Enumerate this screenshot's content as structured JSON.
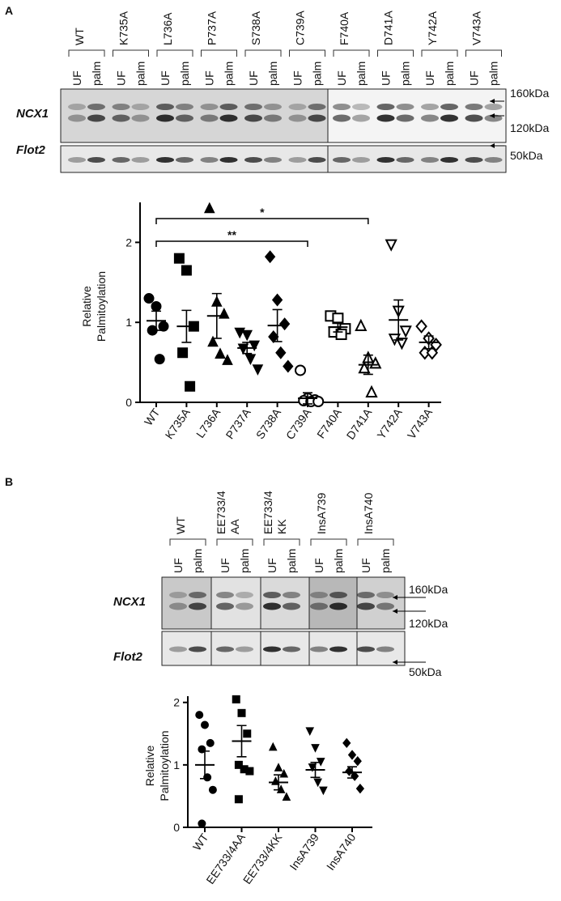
{
  "panels": [
    "A",
    "B"
  ],
  "blots": [
    {
      "columns": [
        [
          "WT"
        ],
        [
          "K735A"
        ],
        [
          "L736A"
        ],
        [
          "P737A"
        ],
        [
          "S738A"
        ],
        [
          "C739A"
        ],
        [
          "F740A"
        ],
        [
          "D741A"
        ],
        [
          "Y742A"
        ],
        [
          "V743A"
        ]
      ],
      "lanes": [
        "UF",
        "palm"
      ],
      "rows": [
        "NCX1",
        "Flot2"
      ],
      "markers": [
        "160kDa",
        "120kDa",
        "50kDa"
      ]
    },
    {
      "columns": [
        [
          "WT"
        ],
        [
          "EE733/4",
          "AA"
        ],
        [
          "EE733/4",
          "KK"
        ],
        [
          "InsA739"
        ],
        [
          "InsA740"
        ]
      ],
      "lanes": [
        "UF",
        "palm"
      ],
      "rows": [
        "NCX1",
        "Flot2"
      ],
      "markers": [
        "160kDa",
        "120kDa",
        "50kDa"
      ]
    }
  ],
  "chart_data": [
    {
      "type": "dot",
      "ylabel": [
        "Relative",
        "Palmitoylation"
      ],
      "categories": [
        "WT",
        "K735A",
        "L736A",
        "P737A",
        "S738A",
        "C739A",
        "F740A",
        "D741A",
        "Y742A",
        "V743A"
      ],
      "markers": [
        "circle",
        "square",
        "triangle",
        "triangle-down",
        "diamond",
        "circle-open",
        "square-open",
        "triangle-open",
        "triangle-down-open",
        "diamond-open"
      ],
      "points": [
        [
          1.3,
          1.2,
          0.95,
          0.9,
          0.54
        ],
        [
          1.8,
          1.65,
          0.95,
          0.62,
          0.2
        ],
        [
          2.42,
          1.25,
          1.1,
          0.75,
          0.6,
          0.52
        ],
        [
          0.88,
          0.85,
          0.72,
          0.68,
          0.55,
          0.42
        ],
        [
          1.82,
          1.28,
          0.98,
          0.82,
          0.62,
          0.45
        ],
        [
          0.4,
          0.05,
          0.03,
          0.02,
          0.01,
          0.01
        ],
        [
          1.08,
          1.05,
          0.92,
          0.88,
          0.85
        ],
        [
          0.95,
          0.55,
          0.48,
          0.42,
          0.12
        ],
        [
          1.98,
          1.15,
          0.9,
          0.8,
          0.75
        ],
        [
          0.95,
          0.8,
          0.72,
          0.62,
          0.62
        ]
      ],
      "means": [
        1.02,
        0.95,
        1.08,
        0.68,
        0.96,
        0.05,
        0.94,
        0.47,
        1.03,
        0.75
      ],
      "errors": [
        0.12,
        0.2,
        0.28,
        0.07,
        0.2,
        0.07,
        0.06,
        0.12,
        0.25,
        0.08
      ],
      "ylim": [
        0,
        2.5
      ],
      "yticks": [
        0,
        1,
        2
      ],
      "annotations": [
        {
          "text": "*",
          "from": 0,
          "to": 7
        },
        {
          "text": "**",
          "from": 0,
          "to": 5
        }
      ]
    },
    {
      "type": "dot",
      "ylabel": [
        "Relative",
        "Palmitoylation"
      ],
      "categories": [
        "WT",
        "EE733/4AA",
        "EE733/4KK",
        "InsA739",
        "InsA740"
      ],
      "markers": [
        "circle",
        "square",
        "triangle",
        "triangle-down",
        "diamond"
      ],
      "points": [
        [
          1.8,
          1.64,
          1.35,
          1.25,
          0.8,
          0.6,
          0.06
        ],
        [
          2.05,
          1.83,
          1.5,
          1.0,
          0.93,
          0.9,
          0.45
        ],
        [
          1.28,
          0.95,
          0.85,
          0.73,
          0.6,
          0.48
        ],
        [
          1.55,
          1.28,
          1.06,
          0.97,
          0.73,
          0.6
        ],
        [
          1.35,
          1.16,
          1.06,
          0.9,
          0.82,
          0.62
        ]
      ],
      "means": [
        1.0,
        1.38,
        0.72,
        0.92,
        0.88
      ],
      "errors": [
        0.22,
        0.25,
        0.12,
        0.12,
        0.09
      ],
      "ylim": [
        0,
        2.1
      ],
      "yticks": [
        0,
        1,
        2
      ]
    }
  ]
}
